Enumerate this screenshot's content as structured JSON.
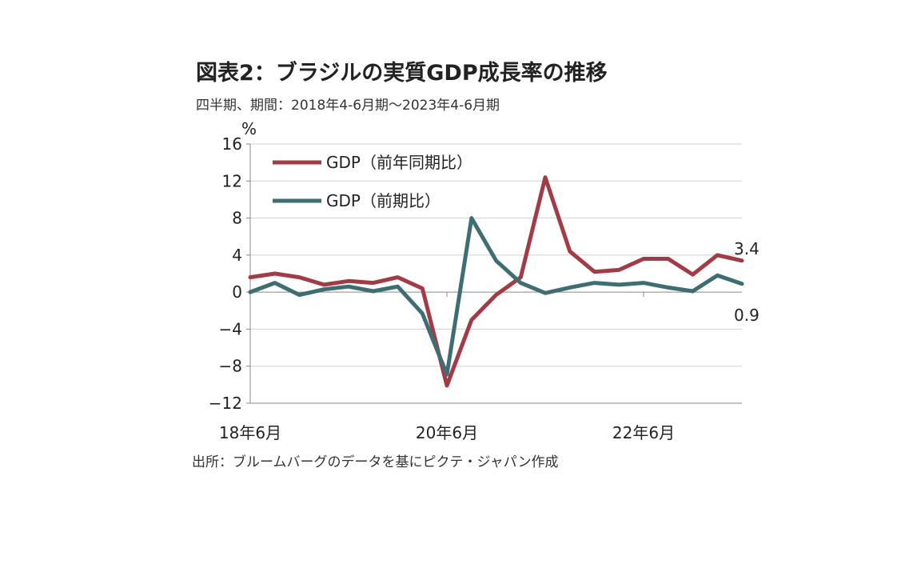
{
  "title": "図表2：ブラジルの実質GDP成長率の推移",
  "subtitle": "四半期、期間：2018年4-6月期～2023年4-6月期",
  "source": "出所：ブルームバーグのデータを基にピクテ・ジャパン作成",
  "colors": {
    "series_yoy": "#a23b45",
    "series_qoq": "#3f6e72",
    "grid": "#d0d0d0",
    "axis": "#888888"
  },
  "chart_data": {
    "type": "line",
    "y_unit": "%",
    "ylim": [
      -12,
      16
    ],
    "yticks": [
      "16",
      "12",
      "8",
      "4",
      "0",
      "−4",
      "−8",
      "−12"
    ],
    "ytick_values": [
      16,
      12,
      8,
      4,
      0,
      -4,
      -8,
      -12
    ],
    "x": [
      "2018Q2",
      "2018Q3",
      "2018Q4",
      "2019Q1",
      "2019Q2",
      "2019Q3",
      "2019Q4",
      "2020Q1",
      "2020Q2",
      "2020Q3",
      "2020Q4",
      "2021Q1",
      "2021Q2",
      "2021Q3",
      "2021Q4",
      "2022Q1",
      "2022Q2",
      "2022Q3",
      "2022Q4",
      "2023Q1",
      "2023Q2"
    ],
    "xtick_labels": [
      {
        "index": 0,
        "label": "18年6月"
      },
      {
        "index": 8,
        "label": "20年6月"
      },
      {
        "index": 16,
        "label": "22年6月"
      }
    ],
    "series": [
      {
        "name": "GDP（前年同期比）",
        "color": "#a23b45",
        "values": [
          1.6,
          2.0,
          1.6,
          0.8,
          1.2,
          1.0,
          1.6,
          0.4,
          -10.1,
          -3.0,
          -0.3,
          1.6,
          12.4,
          4.4,
          2.2,
          2.4,
          3.6,
          3.6,
          1.9,
          4.0,
          3.4
        ]
      },
      {
        "name": "GDP（前期比）",
        "color": "#3f6e72",
        "values": [
          0.0,
          1.0,
          -0.3,
          0.3,
          0.6,
          0.1,
          0.6,
          -2.3,
          -8.9,
          8.0,
          3.4,
          1.0,
          -0.1,
          0.5,
          1.0,
          0.8,
          1.0,
          0.5,
          0.1,
          1.8,
          0.9
        ]
      }
    ],
    "end_labels": [
      "3.4",
      "0.9"
    ],
    "grid": true,
    "legend_position": "top-left"
  }
}
